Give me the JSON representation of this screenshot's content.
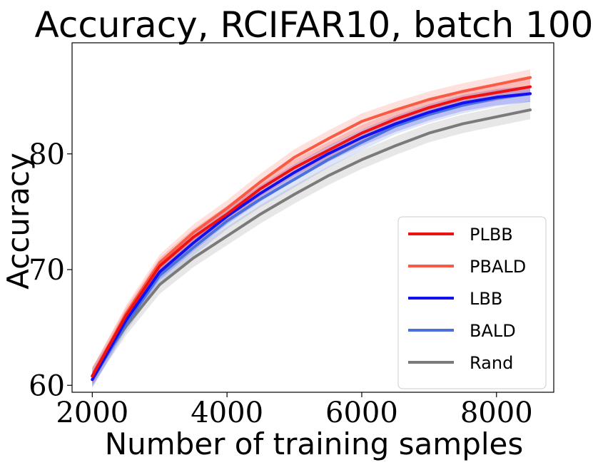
{
  "chart_data": {
    "type": "line",
    "title": "Accuracy, RCIFAR10, batch 100",
    "xlabel": "Number of training samples",
    "ylabel": "Accuracy",
    "xlim": [
      1700,
      8850
    ],
    "ylim": [
      59.4,
      89.6
    ],
    "xticks": [
      2000,
      4000,
      6000,
      8000
    ],
    "yticks": [
      60,
      70,
      80
    ],
    "grid": false,
    "legend_position": "lower-right",
    "x": [
      2000,
      2500,
      3000,
      3500,
      4000,
      4500,
      5000,
      5500,
      6000,
      6500,
      7000,
      7500,
      8000,
      8500
    ],
    "series": [
      {
        "name": "PLBB",
        "color": "#f01010",
        "values": [
          60.8,
          66.0,
          70.3,
          72.8,
          74.8,
          77.0,
          78.8,
          80.3,
          81.8,
          83.0,
          84.0,
          84.8,
          85.3,
          85.8
        ]
      },
      {
        "name": "PBALD",
        "color": "#fa5a44",
        "values": [
          60.8,
          66.2,
          70.6,
          73.2,
          75.3,
          77.6,
          79.7,
          81.3,
          82.8,
          83.8,
          84.7,
          85.4,
          86.0,
          86.6
        ]
      },
      {
        "name": "LBB",
        "color": "#1010f0",
        "values": [
          60.5,
          65.6,
          69.8,
          72.3,
          74.6,
          76.6,
          78.4,
          80.0,
          81.4,
          82.6,
          83.6,
          84.4,
          84.9,
          85.2
        ]
      },
      {
        "name": "BALD",
        "color": "#4a70de",
        "values": [
          60.5,
          65.3,
          69.5,
          71.9,
          74.2,
          76.1,
          77.8,
          79.5,
          81.0,
          82.4,
          83.4,
          84.2,
          84.8,
          85.2
        ]
      },
      {
        "name": "Rand",
        "color": "#7a7a7a",
        "values": [
          60.8,
          65.1,
          68.7,
          71.0,
          72.9,
          74.8,
          76.5,
          78.1,
          79.5,
          80.7,
          81.8,
          82.6,
          83.2,
          83.8
        ]
      }
    ]
  }
}
